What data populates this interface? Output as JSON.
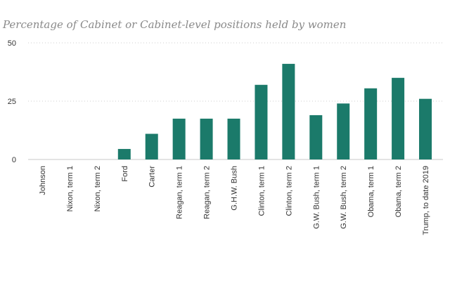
{
  "chart_data": {
    "type": "bar",
    "title": "Percentage of Cabinet or Cabinet-level positions held by women",
    "xlabel": "",
    "ylabel": "",
    "ylim": [
      0,
      50
    ],
    "yticks": [
      0,
      25,
      50
    ],
    "grid": true,
    "bar_color": "#1b7a6a",
    "categories": [
      "Johnson",
      "Nixon, term 1",
      "Nixon, term 2",
      "Ford",
      "Carter",
      "Reagan, term 1",
      "Reagan, term 2",
      "G.H.W. Bush",
      "Clinton, term 1",
      "Clinton, term 2",
      "G.W. Bush, term 1",
      "G.W. Bush, term 2",
      "Obama, term 1",
      "Obama, term 2",
      "Trump, to date 2019"
    ],
    "values": [
      0,
      0,
      0,
      4.5,
      11,
      17.5,
      17.5,
      17.5,
      32,
      41,
      19,
      24,
      30.5,
      35,
      26
    ]
  }
}
